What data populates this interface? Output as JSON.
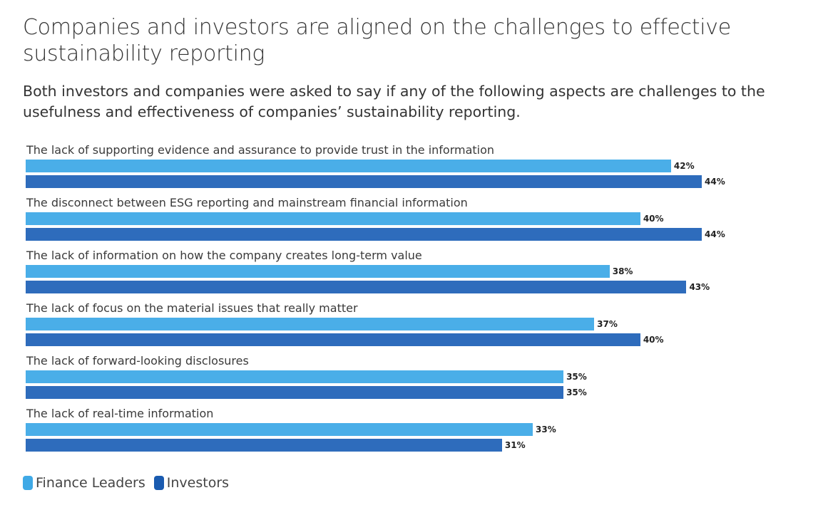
{
  "chart_data": {
    "type": "bar",
    "orientation": "horizontal",
    "title": "Companies and investors are aligned on the challenges to effective sustainability reporting",
    "subtitle": "Both investors and companies were asked to say if any of the following aspects are challenges to the usefulness and effectiveness of companies’ sustainability reporting.",
    "categories": [
      "The lack of supporting evidence and assurance to provide trust in the information",
      "The disconnect between ESG reporting and mainstream financial information",
      "The lack of information on how the company creates long-term value",
      "The lack of focus on the material issues that really matter",
      "The lack of forward-looking disclosures",
      "The lack of real-time information"
    ],
    "series": [
      {
        "name": "Finance Leaders",
        "color": "#4aaee8",
        "legend_color": "#3fa9e6",
        "values": [
          42,
          40,
          38,
          37,
          35,
          33
        ]
      },
      {
        "name": "Investors",
        "color": "#2e6cbc",
        "legend_color": "#1a5bb0",
        "values": [
          44,
          44,
          43,
          40,
          35,
          31
        ]
      }
    ],
    "value_suffix": "%",
    "xlim": [
      0,
      44
    ],
    "grid": false,
    "legend_position": "bottom-left"
  }
}
